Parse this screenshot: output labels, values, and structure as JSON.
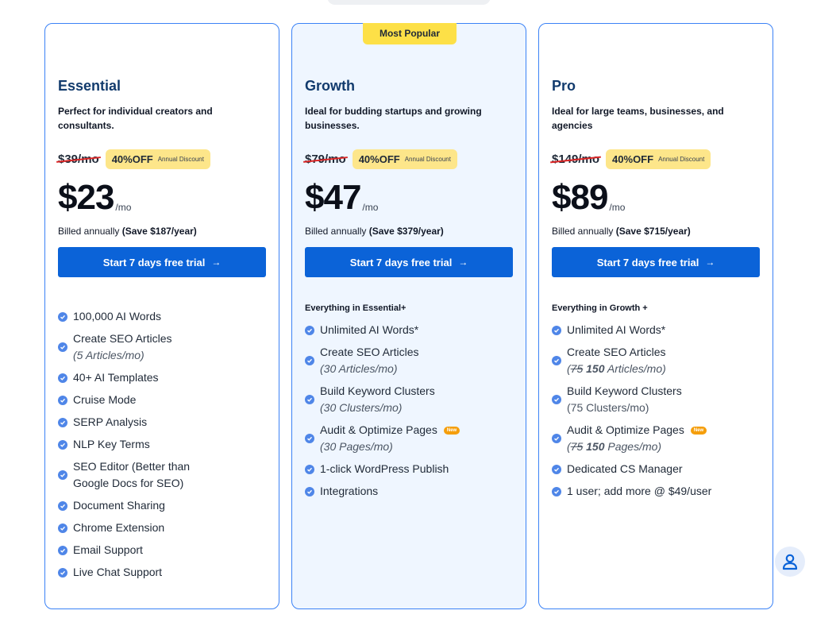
{
  "plans": [
    {
      "name": "Essential",
      "description": "Perfect for individual creators and consultants.",
      "old_price": "$39/mo",
      "discount": "40%OFF",
      "discount_note": "Annual Discount",
      "price": "$23",
      "per": "/mo",
      "billed_prefix": "Billed annually",
      "billed_save": "(Save $187/year)",
      "cta": "Start 7 days free trial",
      "cta_arrow": "→",
      "features": [
        {
          "text": "100,000 AI Words"
        },
        {
          "text": "Create SEO Articles",
          "sub": "(5 Articles/mo)"
        },
        {
          "text": "40+ AI Templates"
        },
        {
          "text": "Cruise Mode"
        },
        {
          "text": "SERP Analysis"
        },
        {
          "text": "NLP Key Terms"
        },
        {
          "text": "SEO Editor (Better than",
          "text2": "Google Docs for SEO)"
        },
        {
          "text": "Document Sharing"
        },
        {
          "text": "Chrome Extension"
        },
        {
          "text": "Email Support"
        },
        {
          "text": "Live Chat Support"
        }
      ]
    },
    {
      "name": "Growth",
      "badge": "Most Popular",
      "description": "Ideal for budding startups and growing businesses.",
      "old_price": "$79/mo",
      "discount": "40%OFF",
      "discount_note": "Annual Discount",
      "price": "$47",
      "per": "/mo",
      "billed_prefix": "Billed annually",
      "billed_save": "(Save $379/year)",
      "cta": "Start 7 days free trial",
      "cta_arrow": "→",
      "included": "Everything in Essential+",
      "features": [
        {
          "text": "Unlimited AI Words*"
        },
        {
          "text": "Create SEO Articles",
          "sub": "(30 Articles/mo)"
        },
        {
          "text": "Build Keyword Clusters",
          "sub": "(30 Clusters/mo)"
        },
        {
          "text": "Audit & Optimize Pages",
          "new": "New",
          "sub": "(30 Pages/mo)"
        },
        {
          "text": "1-click WordPress Publish"
        },
        {
          "text": "Integrations"
        }
      ]
    },
    {
      "name": "Pro",
      "description": "Ideal for large teams, businesses, and agencies",
      "old_price": "$149/mo",
      "discount": "40%OFF",
      "discount_note": "Annual Discount",
      "price": "$89",
      "per": "/mo",
      "billed_prefix": "Billed annually",
      "billed_save": "(Save $715/year)",
      "cta": "Start 7 days free trial",
      "cta_arrow": "→",
      "included": "Everything in Growth +",
      "features": [
        {
          "text": "Unlimited AI Words*"
        },
        {
          "text": "Create SEO Articles",
          "sub_open": "(",
          "sub_strike": "75",
          "sub_bold": "150",
          "sub_rest": "Articles/mo)"
        },
        {
          "text": "Build Keyword Clusters",
          "sub_plain": "(75 Clusters/mo)"
        },
        {
          "text": "Audit & Optimize Pages",
          "new": "New",
          "sub_open": "(",
          "sub_strike": "75",
          "sub_bold": "150",
          "sub_rest": "Pages/mo)"
        },
        {
          "text": "Dedicated CS Manager"
        },
        {
          "text": "1 user; add more @ $49/user"
        }
      ]
    }
  ],
  "icons": {
    "check": "check-circle-icon",
    "support": "user-icon"
  },
  "colors": {
    "accent": "#0b63d8",
    "badge": "#fde047",
    "discount": "#fde68a",
    "check": "#4f86e8"
  }
}
